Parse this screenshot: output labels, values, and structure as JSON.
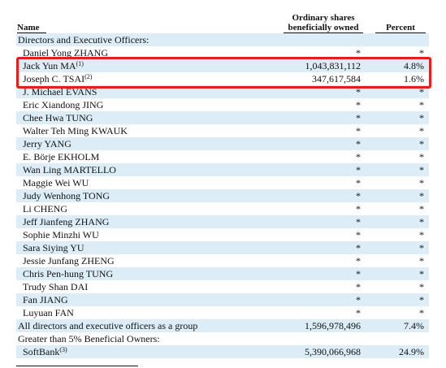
{
  "header": {
    "name": "Name",
    "shares_line1": "Ordinary shares",
    "shares_line2": "beneficially owned",
    "percent": "Percent"
  },
  "table": {
    "rows": [
      {
        "name": "Directors and Executive Officers:",
        "section": true
      },
      {
        "name": "Daniel Yong ZHANG",
        "shares": "*",
        "percent": "*"
      },
      {
        "name": "Jack Yun MA",
        "note": "(1)",
        "shares": "1,043,831,112",
        "percent": "4.8%"
      },
      {
        "name": "Joseph C. TSAI",
        "note": "(2)",
        "shares": "347,617,584",
        "percent": "1.6%"
      },
      {
        "name": "J. Michael EVANS",
        "shares": "*",
        "percent": "*"
      },
      {
        "name": "Eric Xiandong JING",
        "shares": "*",
        "percent": "*"
      },
      {
        "name": "Chee Hwa TUNG",
        "shares": "*",
        "percent": "*"
      },
      {
        "name": "Walter Teh Ming KWAUK",
        "shares": "*",
        "percent": "*"
      },
      {
        "name": "Jerry YANG",
        "shares": "*",
        "percent": "*"
      },
      {
        "name": "E. Börje EKHOLM",
        "shares": "*",
        "percent": "*"
      },
      {
        "name": "Wan Ling MARTELLO",
        "shares": "*",
        "percent": "*"
      },
      {
        "name": "Maggie Wei WU",
        "shares": "*",
        "percent": "*"
      },
      {
        "name": "Judy Wenhong TONG",
        "shares": "*",
        "percent": "*"
      },
      {
        "name": "Li CHENG",
        "shares": "*",
        "percent": "*"
      },
      {
        "name": "Jeff Jianfeng ZHANG",
        "shares": "*",
        "percent": "*"
      },
      {
        "name": "Sophie Minzhi WU",
        "shares": "*",
        "percent": "*"
      },
      {
        "name": "Sara Siying YU",
        "shares": "*",
        "percent": "*"
      },
      {
        "name": "Jessie Junfang ZHENG",
        "shares": "*",
        "percent": "*"
      },
      {
        "name": "Chris Pen-hung TUNG",
        "shares": "*",
        "percent": "*"
      },
      {
        "name": "Trudy Shan DAI",
        "shares": "*",
        "percent": "*"
      },
      {
        "name": "Fan JIANG",
        "shares": "*",
        "percent": "*"
      },
      {
        "name": "Luyuan FAN",
        "shares": "*",
        "percent": "*"
      },
      {
        "name": "All directors and executive officers as a group",
        "section": true,
        "shares": "1,596,978,496",
        "percent": "7.4%"
      },
      {
        "name": "Greater than 5% Beneficial Owners:",
        "section": true
      },
      {
        "name": "SoftBank",
        "note": "(3)",
        "shares": "5,390,066,968",
        "percent": "24.9%"
      }
    ]
  }
}
